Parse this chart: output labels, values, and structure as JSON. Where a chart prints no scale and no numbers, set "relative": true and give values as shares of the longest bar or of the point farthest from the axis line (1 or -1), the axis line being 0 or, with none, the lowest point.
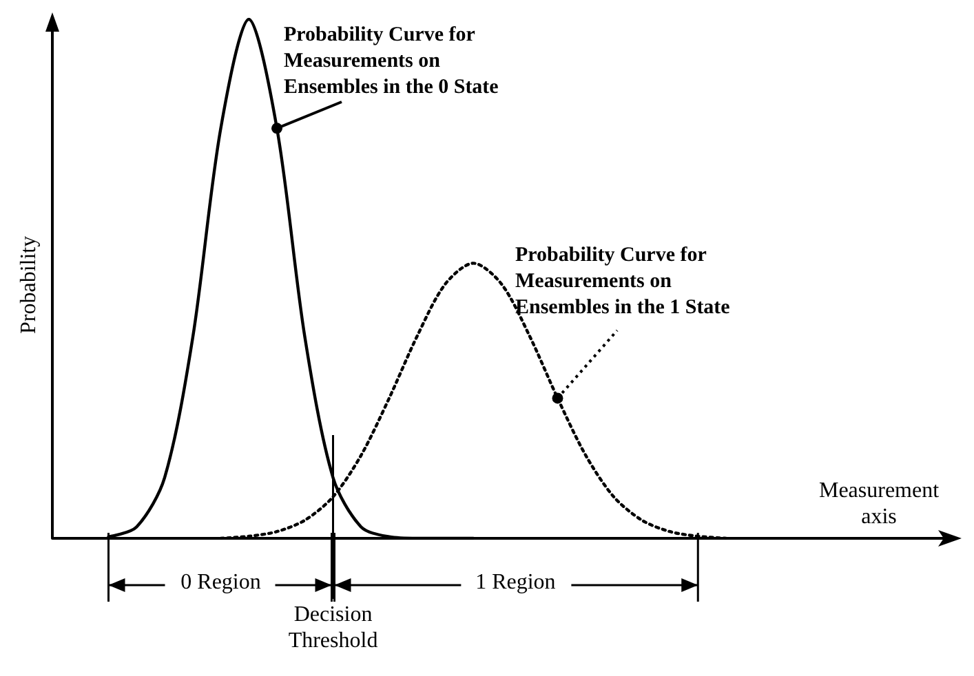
{
  "chart_data": {
    "type": "line",
    "relative": true,
    "xlabel": "Measurement axis",
    "ylabel": "Probability",
    "categories": [
      null,
      null,
      null,
      null,
      null,
      null,
      null,
      null,
      null,
      null,
      null,
      null,
      null,
      null,
      null,
      null,
      null,
      null,
      null,
      null,
      null,
      null,
      null,
      null,
      null,
      null,
      null,
      null,
      null,
      null,
      null,
      null,
      null
    ],
    "series": [
      {
        "name": "Probability Curve for Measurements on Ensembles in the 0 State",
        "color": "#000000",
        "line_style": "solid",
        "values": [
          null,
          null,
          0.003,
          0.022,
          0.117,
          0.386,
          0.79,
          1,
          0.79,
          0.386,
          0.117,
          0.022,
          0.003,
          0,
          0,
          0,
          null,
          null,
          null,
          null,
          null,
          null,
          null,
          null,
          null,
          null,
          null,
          null,
          null,
          null,
          null,
          null,
          null
        ]
      },
      {
        "name": "Probability Curve for Measurements on Ensembles in the 1 State",
        "color": "#000000",
        "line_style": "dotted",
        "values": [
          null,
          null,
          null,
          null,
          null,
          null,
          0,
          0.004,
          0.013,
          0.035,
          0.08,
          0.16,
          0.27,
          0.39,
          0.49,
          0.53,
          0.49,
          0.39,
          0.27,
          0.16,
          0.08,
          0.035,
          0.013,
          0.004,
          0,
          null,
          null,
          null,
          null,
          null,
          null,
          null,
          null
        ]
      }
    ],
    "annotations": [
      "0 Region",
      "1 Region",
      "Decision Threshold"
    ],
    "legend": false,
    "grid": false,
    "marker": "none"
  }
}
